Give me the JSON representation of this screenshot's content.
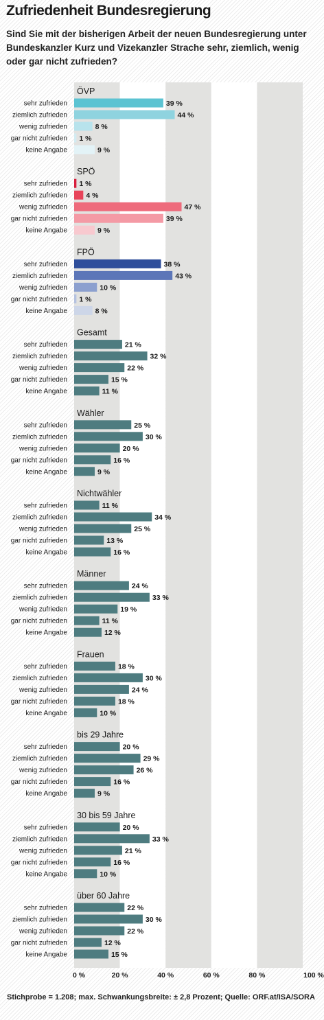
{
  "title": "Zufriedenheit Bundesregierung",
  "subtitle": "Sind Sie mit der bisherigen Arbeit der neuen Bundesregierung unter Bundeskanzler Kurz und Vizekanzler Strache sehr, ziemlich, wenig oder gar nicht zufrieden?",
  "source": "Stichprobe = 1.208; max. Schwankungsbreite: ± 2,8 Prozent; Quelle: ORF.at/ISA/SORA",
  "chart_data": {
    "type": "bar",
    "orientation": "horizontal",
    "xlim": [
      0,
      100
    ],
    "x_ticks": [
      "0 %",
      "20 %",
      "40 %",
      "60 %",
      "80 %",
      "100 %"
    ],
    "value_suffix": " %",
    "categories": [
      "sehr zufrieden",
      "ziemlich zufrieden",
      "wenig zufrieden",
      "gar nicht zufrieden",
      "keine Angabe"
    ],
    "background": "alternating grey and white 20 % bands",
    "groups": [
      {
        "name": "ÖVP",
        "values": [
          39,
          44,
          8,
          1,
          9
        ],
        "colors": [
          "#5bc3d2",
          "#8fd3df",
          "#b8e3ec",
          "#d3ecf2",
          "#e3f3f7"
        ]
      },
      {
        "name": "SPÖ",
        "values": [
          1,
          4,
          47,
          39,
          9
        ],
        "colors": [
          "#d81e3c",
          "#e8445a",
          "#ee6b7c",
          "#f49aa5",
          "#f8c9cf"
        ]
      },
      {
        "name": "FPÖ",
        "values": [
          38,
          43,
          10,
          1,
          8
        ],
        "colors": [
          "#2f4e9b",
          "#5c76b8",
          "#8ca0cf",
          "#b5c2e0",
          "#cdd6e8"
        ]
      },
      {
        "name": "Gesamt",
        "values": [
          21,
          32,
          22,
          15,
          11
        ],
        "colors": [
          "#4e7c80"
        ]
      },
      {
        "name": "Wähler",
        "values": [
          25,
          30,
          20,
          16,
          9
        ],
        "colors": [
          "#4e7c80"
        ]
      },
      {
        "name": "Nichtwähler",
        "values": [
          11,
          34,
          25,
          13,
          16
        ],
        "colors": [
          "#4e7c80"
        ]
      },
      {
        "name": "Männer",
        "values": [
          24,
          33,
          19,
          11,
          12
        ],
        "colors": [
          "#4e7c80"
        ]
      },
      {
        "name": "Frauen",
        "values": [
          18,
          30,
          24,
          18,
          10
        ],
        "colors": [
          "#4e7c80"
        ]
      },
      {
        "name": "bis 29 Jahre",
        "values": [
          20,
          29,
          26,
          16,
          9
        ],
        "colors": [
          "#4e7c80"
        ]
      },
      {
        "name": "30 bis 59 Jahre",
        "values": [
          20,
          33,
          21,
          16,
          10
        ],
        "colors": [
          "#4e7c80"
        ]
      },
      {
        "name": "über 60 Jahre",
        "values": [
          22,
          30,
          22,
          12,
          15
        ],
        "colors": [
          "#4e7c80"
        ]
      }
    ]
  }
}
